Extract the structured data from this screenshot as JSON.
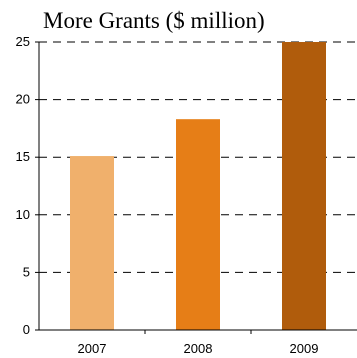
{
  "chart_data": {
    "type": "bar",
    "title": "More Grants ($ million)",
    "xlabel": "",
    "ylabel": "",
    "categories": [
      "2007",
      "2008",
      "2009"
    ],
    "values": [
      15.1,
      18.3,
      25.0
    ],
    "colors": [
      "#f0b06c",
      "#e67e17",
      "#b05c0c"
    ],
    "ylim": [
      0,
      25
    ],
    "yticks": [
      0,
      5,
      10,
      15,
      20,
      25
    ],
    "grid": "horizontal dashed",
    "legend": "none"
  }
}
